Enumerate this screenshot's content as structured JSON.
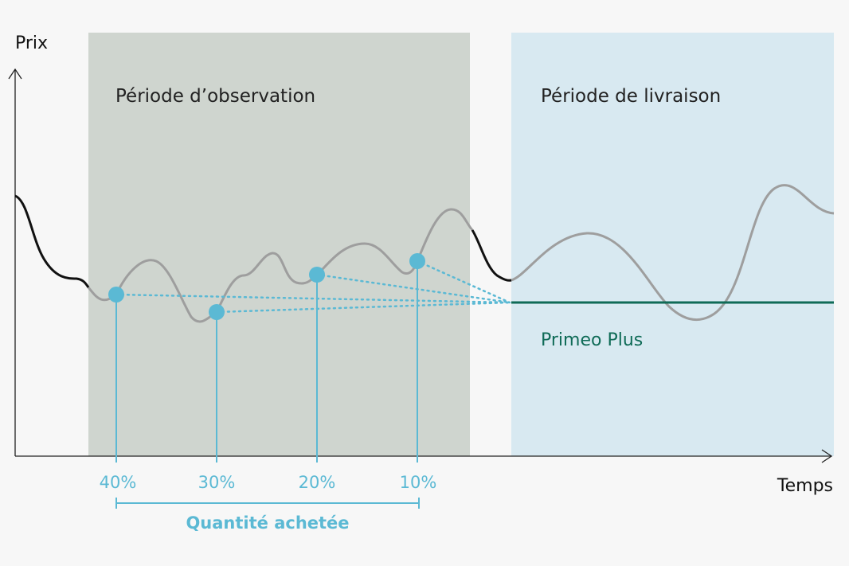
{
  "axes": {
    "y_label": "Prix",
    "x_label": "Temps"
  },
  "zones": {
    "observation": {
      "label": "Période d’observation",
      "color": "#cfd5cf"
    },
    "delivery": {
      "label": "Période de livraison",
      "color": "#d8e9f1"
    }
  },
  "fixed_price": {
    "label": "Primeo Plus",
    "color": "#0f6b57"
  },
  "purchases": [
    {
      "label": "40%"
    },
    {
      "label": "30%"
    },
    {
      "label": "20%"
    },
    {
      "label": "10%"
    }
  ],
  "purchase_bracket_label": "Quantité achetée",
  "colors": {
    "accent": "#5bb9d4",
    "price_line_grey": "#9e9e9e",
    "price_line_black": "#111111",
    "axis": "#222222"
  }
}
